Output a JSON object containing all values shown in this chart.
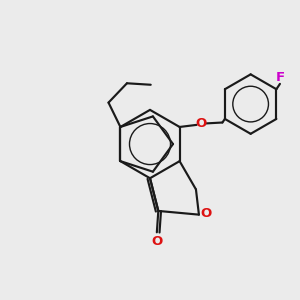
{
  "bg": "#ebebeb",
  "bc": "#1a1a1a",
  "oc": "#dd1111",
  "fc": "#cc00cc",
  "lw": 1.55,
  "fs": 9.5,
  "figsize": [
    3.0,
    3.0
  ],
  "dpi": 100,
  "F_text": "F",
  "O_text": "O",
  "xlim": [
    0,
    10
  ],
  "ylim": [
    0,
    10
  ]
}
